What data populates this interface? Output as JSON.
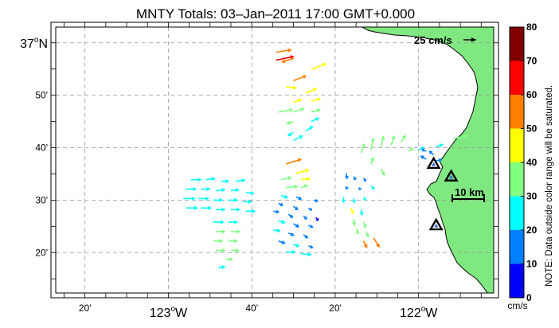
{
  "title": "MNTY Totals: 03–Jan–2011 17:00 GMT+0.000",
  "lat_labels": [
    {
      "text": "37",
      "deg": true,
      "suffix": "N",
      "lat": 37.0
    },
    {
      "text": "50'",
      "deg": false,
      "suffix": "",
      "lat": 36.8333
    },
    {
      "text": "40'",
      "deg": false,
      "suffix": "",
      "lat": 36.6667
    },
    {
      "text": "30'",
      "deg": false,
      "suffix": "",
      "lat": 36.5
    },
    {
      "text": "20'",
      "deg": false,
      "suffix": "",
      "lat": 36.3333
    }
  ],
  "lon_labels": [
    {
      "text": "20'",
      "deg": false,
      "suffix": "",
      "lon": -123.3333
    },
    {
      "text": "123",
      "deg": true,
      "suffix": "W",
      "lon": -123.0
    },
    {
      "text": "40'",
      "deg": false,
      "suffix": "",
      "lon": -122.6667
    },
    {
      "text": "20'",
      "deg": false,
      "suffix": "",
      "lon": -122.3333
    },
    {
      "text": "122",
      "deg": true,
      "suffix": "W",
      "lon": -122.0
    }
  ],
  "map_extent": {
    "lon_min": -123.45,
    "lon_max": -121.7,
    "lat_min": 36.205,
    "lat_max": 37.05
  },
  "reference_vector": {
    "label": "25 cm/s",
    "speed_cm_s": 25
  },
  "scale_bar": {
    "label": "10 km",
    "length_km": 10
  },
  "colorbar": {
    "ticks": [
      "80",
      "70",
      "60",
      "50",
      "40",
      "30",
      "20",
      "10",
      "0"
    ],
    "colors": [
      "#0000ff",
      "#0080ff",
      "#00ffff",
      "#80ff80",
      "#ffff00",
      "#ff8000",
      "#ff0000",
      "#800000"
    ],
    "unit": "cm/s",
    "note": "NOTE: Data outside color range will be saturated."
  },
  "colors": {
    "land": "#80e880",
    "coast": "#000000",
    "grid": "#999999"
  },
  "sites": [
    {
      "lon": -121.94,
      "lat": 36.615,
      "marker": "triangle"
    },
    {
      "lon": -121.87,
      "lat": 36.575,
      "marker": "triangle"
    },
    {
      "lon": -121.93,
      "lat": 36.42,
      "marker": "triangle"
    }
  ],
  "vectors": [
    {
      "lon": -122.57,
      "lat": 36.97,
      "u": 13,
      "v": 2,
      "speed": 58
    },
    {
      "lon": -122.57,
      "lat": 36.945,
      "u": 15,
      "v": 3,
      "speed": 60
    },
    {
      "lon": -122.5,
      "lat": 36.95,
      "u": -10,
      "v": -3,
      "speed": 57
    },
    {
      "lon": -122.43,
      "lat": 36.915,
      "u": 13,
      "v": 5,
      "speed": 46
    },
    {
      "lon": -122.5,
      "lat": 36.88,
      "u": 11,
      "v": 4,
      "speed": 52
    },
    {
      "lon": -122.53,
      "lat": 36.86,
      "u": 9,
      "v": -1,
      "speed": 43
    },
    {
      "lon": -122.45,
      "lat": 36.84,
      "u": 9,
      "v": 4,
      "speed": 45
    },
    {
      "lon": -122.5,
      "lat": 36.81,
      "u": 7,
      "v": 3,
      "speed": 40
    },
    {
      "lon": -122.43,
      "lat": 36.815,
      "u": 8,
      "v": 2,
      "speed": 41
    },
    {
      "lon": -122.56,
      "lat": 36.78,
      "u": 12,
      "v": 2,
      "speed": 36
    },
    {
      "lon": -122.5,
      "lat": 36.78,
      "u": 9,
      "v": 3,
      "speed": 33
    },
    {
      "lon": -122.43,
      "lat": 36.78,
      "u": 8,
      "v": 2,
      "speed": 34
    },
    {
      "lon": -122.5,
      "lat": 36.75,
      "u": -6,
      "v": -2,
      "speed": 30
    },
    {
      "lon": -122.43,
      "lat": 36.75,
      "u": 7,
      "v": 3,
      "speed": 27
    },
    {
      "lon": -122.5,
      "lat": 36.715,
      "u": -5,
      "v": -3,
      "speed": 23
    },
    {
      "lon": -122.45,
      "lat": 36.72,
      "u": 6,
      "v": 4,
      "speed": 24
    },
    {
      "lon": -122.5,
      "lat": 36.69,
      "u": 8,
      "v": 4,
      "speed": 22
    },
    {
      "lon": -122.53,
      "lat": 36.615,
      "u": 13,
      "v": 4,
      "speed": 58
    },
    {
      "lon": -122.49,
      "lat": 36.585,
      "u": 11,
      "v": 3,
      "speed": 44
    },
    {
      "lon": -122.55,
      "lat": 36.565,
      "u": 9,
      "v": 2,
      "speed": 38
    },
    {
      "lon": -122.47,
      "lat": 36.565,
      "u": 8,
      "v": 1,
      "speed": 42
    },
    {
      "lon": -122.53,
      "lat": 36.54,
      "u": 10,
      "v": 1,
      "speed": 35
    },
    {
      "lon": -122.47,
      "lat": 36.54,
      "u": 6,
      "v": 2,
      "speed": 30
    },
    {
      "lon": -122.55,
      "lat": 36.515,
      "u": 6,
      "v": -2,
      "speed": 21
    },
    {
      "lon": -122.49,
      "lat": 36.51,
      "u": 5,
      "v": -2,
      "speed": 18
    },
    {
      "lon": -122.42,
      "lat": 36.5,
      "u": 4,
      "v": -1,
      "speed": 15
    },
    {
      "lon": -122.56,
      "lat": 36.49,
      "u": 4,
      "v": -2,
      "speed": 14
    },
    {
      "lon": -122.5,
      "lat": 36.48,
      "u": 4,
      "v": -3,
      "speed": 12
    },
    {
      "lon": -122.44,
      "lat": 36.475,
      "u": 3,
      "v": -2,
      "speed": 10
    },
    {
      "lon": -122.58,
      "lat": 36.465,
      "u": 5,
      "v": -1,
      "speed": 18
    },
    {
      "lon": -122.52,
      "lat": 36.455,
      "u": 4,
      "v": -3,
      "speed": 13
    },
    {
      "lon": -122.46,
      "lat": 36.45,
      "u": 3,
      "v": -3,
      "speed": 11
    },
    {
      "lon": -122.41,
      "lat": 36.445,
      "u": 2,
      "v": -3,
      "speed": 9
    },
    {
      "lon": -122.56,
      "lat": 36.435,
      "u": 6,
      "v": -2,
      "speed": 20
    },
    {
      "lon": -122.5,
      "lat": 36.425,
      "u": 5,
      "v": -3,
      "speed": 16
    },
    {
      "lon": -122.44,
      "lat": 36.42,
      "u": 4,
      "v": -2,
      "speed": 14
    },
    {
      "lon": -122.58,
      "lat": 36.405,
      "u": 6,
      "v": -1,
      "speed": 20
    },
    {
      "lon": -122.52,
      "lat": 36.395,
      "u": 5,
      "v": -2,
      "speed": 17
    },
    {
      "lon": -122.46,
      "lat": 36.39,
      "u": 4,
      "v": -3,
      "speed": 15
    },
    {
      "lon": -122.56,
      "lat": 36.37,
      "u": 6,
      "v": -2,
      "speed": 18
    },
    {
      "lon": -122.5,
      "lat": 36.36,
      "u": 5,
      "v": -2,
      "speed": 20
    },
    {
      "lon": -122.44,
      "lat": 36.355,
      "u": 4,
      "v": -2,
      "speed": 19
    },
    {
      "lon": -122.53,
      "lat": 36.335,
      "u": 8,
      "v": 0,
      "speed": 22
    },
    {
      "lon": -122.47,
      "lat": 36.33,
      "u": 9,
      "v": -1,
      "speed": 24
    },
    {
      "lon": -122.91,
      "lat": 36.565,
      "u": 9,
      "v": 0,
      "speed": 24
    },
    {
      "lon": -122.85,
      "lat": 36.565,
      "u": 8,
      "v": 1,
      "speed": 23
    },
    {
      "lon": -122.79,
      "lat": 36.56,
      "u": 7,
      "v": 0,
      "speed": 22
    },
    {
      "lon": -122.73,
      "lat": 36.56,
      "u": 8,
      "v": 1,
      "speed": 24
    },
    {
      "lon": -122.93,
      "lat": 36.535,
      "u": 9,
      "v": 0,
      "speed": 25
    },
    {
      "lon": -122.87,
      "lat": 36.535,
      "u": 8,
      "v": 0,
      "speed": 24
    },
    {
      "lon": -122.81,
      "lat": 36.53,
      "u": 8,
      "v": 1,
      "speed": 23
    },
    {
      "lon": -122.75,
      "lat": 36.53,
      "u": 7,
      "v": 1,
      "speed": 22
    },
    {
      "lon": -122.69,
      "lat": 36.525,
      "u": 7,
      "v": -1,
      "speed": 21
    },
    {
      "lon": -122.94,
      "lat": 36.505,
      "u": 10,
      "v": 0,
      "speed": 25
    },
    {
      "lon": -122.88,
      "lat": 36.505,
      "u": 9,
      "v": 0,
      "speed": 24
    },
    {
      "lon": -122.82,
      "lat": 36.5,
      "u": 8,
      "v": 0,
      "speed": 23
    },
    {
      "lon": -122.76,
      "lat": 36.5,
      "u": 8,
      "v": 0,
      "speed": 22
    },
    {
      "lon": -122.7,
      "lat": 36.495,
      "u": 7,
      "v": 0,
      "speed": 21
    },
    {
      "lon": -122.93,
      "lat": 36.475,
      "u": 10,
      "v": 0,
      "speed": 26
    },
    {
      "lon": -122.87,
      "lat": 36.475,
      "u": 9,
      "v": 0,
      "speed": 25
    },
    {
      "lon": -122.81,
      "lat": 36.47,
      "u": 8,
      "v": 0,
      "speed": 24
    },
    {
      "lon": -122.75,
      "lat": 36.47,
      "u": 8,
      "v": 0,
      "speed": 23
    },
    {
      "lon": -122.69,
      "lat": 36.465,
      "u": 8,
      "v": 0,
      "speed": 22
    },
    {
      "lon": -122.82,
      "lat": 36.43,
      "u": 9,
      "v": 0,
      "speed": 28
    },
    {
      "lon": -122.76,
      "lat": 36.43,
      "u": 8,
      "v": 0,
      "speed": 27
    },
    {
      "lon": -122.81,
      "lat": 36.4,
      "u": 8,
      "v": 0,
      "speed": 31
    },
    {
      "lon": -122.75,
      "lat": 36.4,
      "u": 8,
      "v": 0,
      "speed": 30
    },
    {
      "lon": -122.82,
      "lat": 36.37,
      "u": 8,
      "v": 0,
      "speed": 34
    },
    {
      "lon": -122.76,
      "lat": 36.37,
      "u": 8,
      "v": 0,
      "speed": 33
    },
    {
      "lon": -122.81,
      "lat": 36.34,
      "u": 8,
      "v": 0,
      "speed": 32
    },
    {
      "lon": -122.75,
      "lat": 36.34,
      "u": 7,
      "v": 0,
      "speed": 31
    },
    {
      "lon": -122.77,
      "lat": 36.31,
      "u": 6,
      "v": 1,
      "speed": 30
    },
    {
      "lon": -122.8,
      "lat": 36.285,
      "u": 6,
      "v": 1,
      "speed": 28
    },
    {
      "lon": -122.23,
      "lat": 36.65,
      "u": 3,
      "v": 8,
      "speed": 35
    },
    {
      "lon": -122.19,
      "lat": 36.66,
      "u": 2,
      "v": 10,
      "speed": 38
    },
    {
      "lon": -122.15,
      "lat": 36.67,
      "u": 2,
      "v": 9,
      "speed": 36
    },
    {
      "lon": -122.11,
      "lat": 36.675,
      "u": 3,
      "v": 8,
      "speed": 34
    },
    {
      "lon": -122.07,
      "lat": 36.685,
      "u": 4,
      "v": 6,
      "speed": 33
    },
    {
      "lon": -122.19,
      "lat": 36.615,
      "u": 2,
      "v": 6,
      "speed": 34
    },
    {
      "lon": -122.15,
      "lat": 36.6,
      "u": 3,
      "v": -6,
      "speed": 32
    },
    {
      "lon": -122.04,
      "lat": 36.655,
      "u": 4,
      "v": 3,
      "speed": 30
    },
    {
      "lon": -122.0,
      "lat": 36.66,
      "u": 5,
      "v": 2,
      "speed": 20
    },
    {
      "lon": -121.97,
      "lat": 36.655,
      "u": -4,
      "v": 2,
      "speed": 15
    },
    {
      "lon": -121.97,
      "lat": 36.63,
      "u": -5,
      "v": 3,
      "speed": 14
    },
    {
      "lon": -121.94,
      "lat": 36.645,
      "u": -4,
      "v": 3,
      "speed": 12
    },
    {
      "lon": -121.93,
      "lat": 36.625,
      "u": 5,
      "v": 1,
      "speed": 18
    },
    {
      "lon": -121.93,
      "lat": 36.67,
      "u": 6,
      "v": 2,
      "speed": 24
    },
    {
      "lon": -121.86,
      "lat": 36.695,
      "u": 12,
      "v": 3,
      "speed": 35
    },
    {
      "lon": -122.29,
      "lat": 36.585,
      "u": 1,
      "v": -5,
      "speed": 12
    },
    {
      "lon": -122.26,
      "lat": 36.575,
      "u": 2,
      "v": -3,
      "speed": 10
    },
    {
      "lon": -122.22,
      "lat": 36.57,
      "u": 2,
      "v": -3,
      "speed": 12
    },
    {
      "lon": -122.29,
      "lat": 36.545,
      "u": 1,
      "v": -3,
      "speed": 14
    },
    {
      "lon": -122.24,
      "lat": 36.54,
      "u": 2,
      "v": -2,
      "speed": 13
    },
    {
      "lon": -122.19,
      "lat": 36.545,
      "u": 3,
      "v": -3,
      "speed": 20
    },
    {
      "lon": -122.3,
      "lat": 36.51,
      "u": 0,
      "v": -5,
      "speed": 26
    },
    {
      "lon": -122.26,
      "lat": 36.505,
      "u": 1,
      "v": -4,
      "speed": 22
    },
    {
      "lon": -122.22,
      "lat": 36.51,
      "u": 2,
      "v": -3,
      "speed": 20
    },
    {
      "lon": -122.27,
      "lat": 36.475,
      "u": 2,
      "v": -5,
      "speed": 40
    },
    {
      "lon": -122.23,
      "lat": 36.47,
      "u": 1,
      "v": -5,
      "speed": 28
    },
    {
      "lon": -122.26,
      "lat": 36.44,
      "u": 1,
      "v": -6,
      "speed": 35
    },
    {
      "lon": -122.22,
      "lat": 36.43,
      "u": 2,
      "v": -5,
      "speed": 30
    },
    {
      "lon": -122.25,
      "lat": 36.41,
      "u": 2,
      "v": -5,
      "speed": 36
    },
    {
      "lon": -122.21,
      "lat": 36.4,
      "u": 2,
      "v": -5,
      "speed": 33
    },
    {
      "lon": -122.22,
      "lat": 36.37,
      "u": 3,
      "v": -6,
      "speed": 55
    },
    {
      "lon": -122.18,
      "lat": 36.38,
      "u": 5,
      "v": -8,
      "speed": 58
    }
  ]
}
